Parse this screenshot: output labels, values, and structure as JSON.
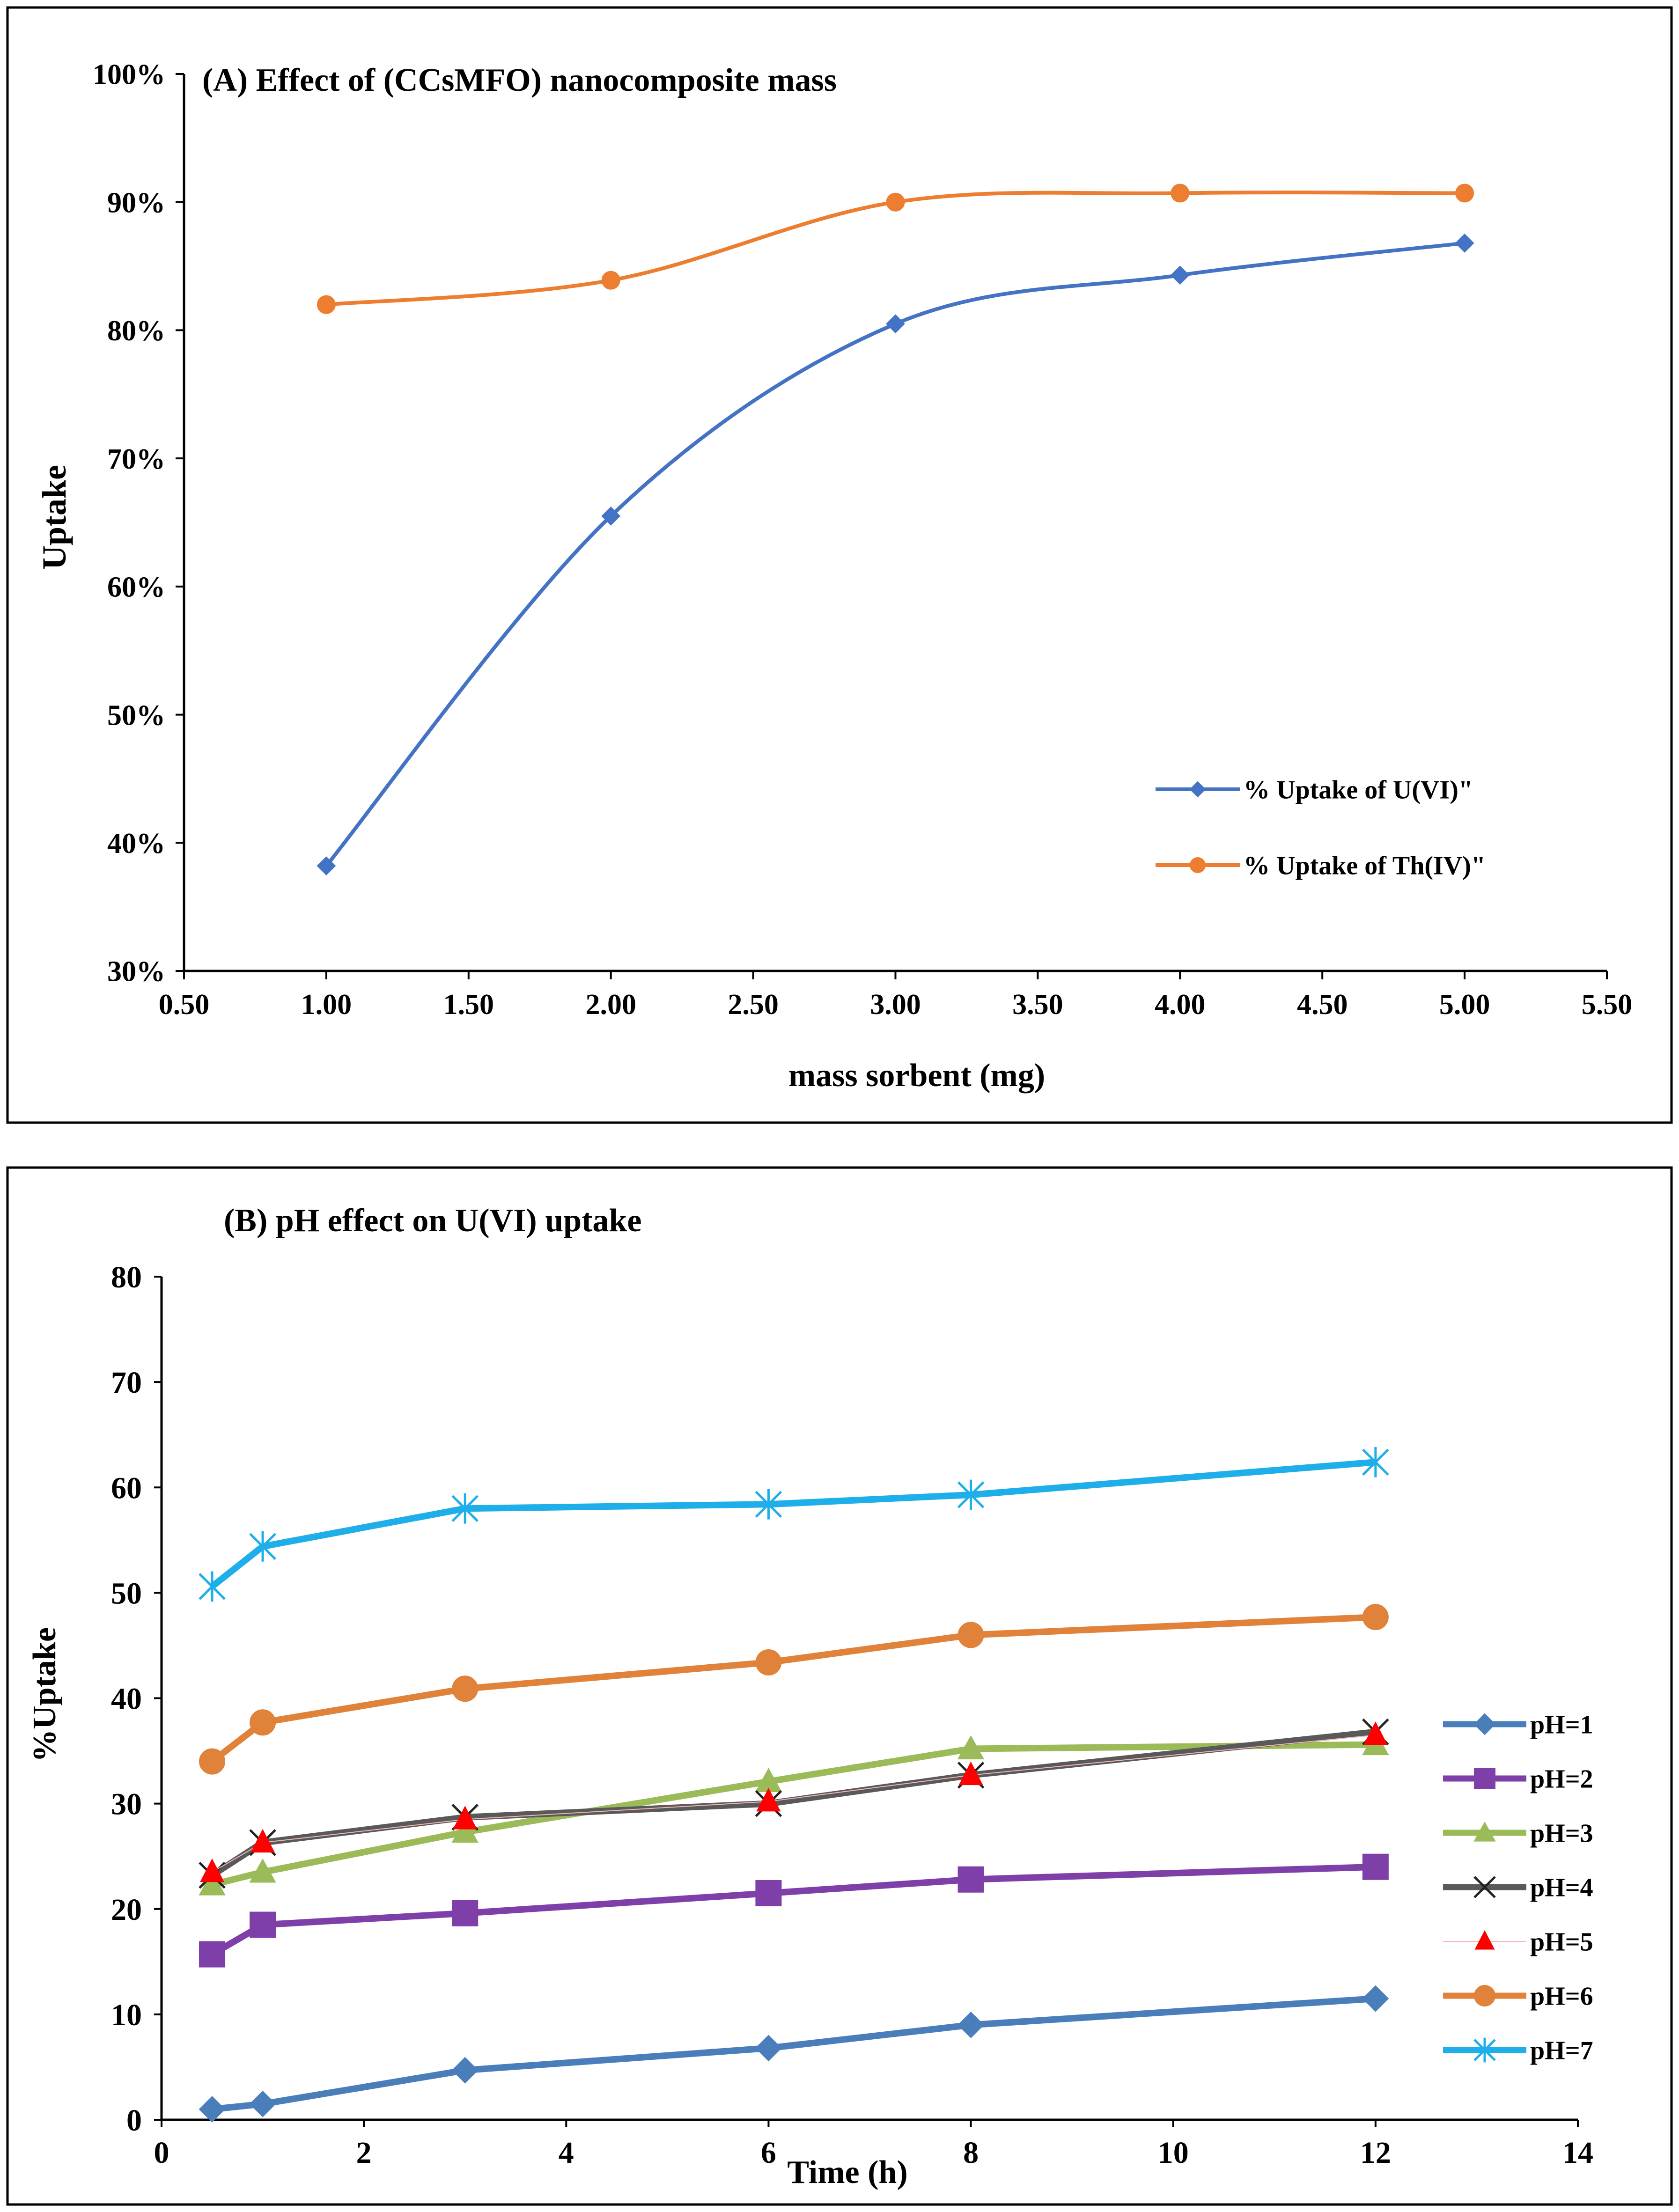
{
  "chart_data": [
    {
      "type": "line",
      "title": "(A) Effect of (CCsMFO) nanocomposite mass",
      "xlabel": "mass sorbent (mg)",
      "ylabel": "Uptake",
      "xlim": [
        0.5,
        5.5
      ],
      "ylim": [
        30,
        100
      ],
      "x_ticks": [
        0.5,
        1.0,
        1.5,
        2.0,
        2.5,
        3.0,
        3.5,
        4.0,
        4.5,
        5.0,
        5.5
      ],
      "x_tick_labels": [
        "0.50",
        "1.00",
        "1.50",
        "2.00",
        "2.50",
        "3.00",
        "3.50",
        "4.00",
        "4.50",
        "5.00",
        "5.50"
      ],
      "y_ticks": [
        30,
        40,
        50,
        60,
        70,
        80,
        90,
        100
      ],
      "y_tick_labels": [
        "30%",
        "40%",
        "50%",
        "60%",
        "70%",
        "80%",
        "90%",
        "100%"
      ],
      "grid": false,
      "legend_position": "bottom-right",
      "smooth": true,
      "series": [
        {
          "name": "% Uptake of U(VI)\"",
          "color": "#4472C4",
          "marker": "diamond",
          "x": [
            1,
            2,
            3,
            4,
            5
          ],
          "values": [
            38.2,
            65.5,
            80.5,
            84.3,
            86.8
          ]
        },
        {
          "name": "% Uptake of Th(IV)\"",
          "color": "#ED7D31",
          "marker": "circle",
          "x": [
            1,
            2,
            3,
            4,
            5
          ],
          "values": [
            82.0,
            83.9,
            90.0,
            90.7,
            90.7
          ]
        }
      ]
    },
    {
      "type": "line",
      "title": "(B) pH effect on U(VI) uptake",
      "xlabel": "Time (h)",
      "ylabel": "%Uptake",
      "xlim": [
        0,
        14
      ],
      "ylim": [
        0,
        80
      ],
      "x_ticks": [
        0,
        2,
        4,
        6,
        8,
        10,
        12,
        14
      ],
      "x_tick_labels": [
        "0",
        "2",
        "4",
        "6",
        "8",
        "10",
        "12",
        "14"
      ],
      "y_ticks": [
        0,
        10,
        20,
        30,
        40,
        50,
        60,
        70,
        80
      ],
      "y_tick_labels": [
        "0",
        "10",
        "20",
        "30",
        "40",
        "50",
        "60",
        "70",
        "80"
      ],
      "grid": false,
      "legend_position": "right",
      "smooth": false,
      "series": [
        {
          "name": "pH=1",
          "color": "#4A7EBB",
          "marker": "diamond",
          "x": [
            0.5,
            1,
            3,
            6,
            8,
            12
          ],
          "values": [
            1.0,
            1.5,
            4.7,
            6.8,
            9.0,
            11.5
          ]
        },
        {
          "name": "pH=2",
          "color": "#7E3FA8",
          "marker": "square",
          "x": [
            0.5,
            1,
            3,
            6,
            8,
            12
          ],
          "values": [
            15.7,
            18.5,
            19.6,
            21.5,
            22.8,
            24.0
          ]
        },
        {
          "name": "pH=3",
          "color": "#9BBB59",
          "marker": "triangle",
          "x": [
            0.5,
            1,
            3,
            6,
            8,
            12
          ],
          "values": [
            22.3,
            23.5,
            27.3,
            32.1,
            35.2,
            35.6
          ]
        },
        {
          "name": "pH=4",
          "color": "#595959",
          "marker": "x",
          "x": [
            0.5,
            1,
            3,
            6,
            8,
            12
          ],
          "values": [
            23.2,
            26.3,
            28.7,
            30.0,
            32.7,
            36.8
          ]
        },
        {
          "name": "pH=5",
          "color": "#FF0000",
          "marker": "red-triangle",
          "x": [
            0.5,
            1,
            3,
            6,
            8,
            12
          ],
          "values": [
            23.5,
            26.3,
            28.5,
            30.2,
            32.7,
            36.5
          ]
        },
        {
          "name": "pH=6",
          "color": "#E0823A",
          "marker": "circle",
          "x": [
            0.5,
            1,
            3,
            6,
            8,
            12
          ],
          "values": [
            34.0,
            37.7,
            40.9,
            43.4,
            46.0,
            47.7
          ]
        },
        {
          "name": "pH=7",
          "color": "#1EAEEA",
          "marker": "star",
          "x": [
            0.5,
            1,
            3,
            6,
            8,
            12
          ],
          "values": [
            50.6,
            54.4,
            58.0,
            58.4,
            59.3,
            62.4
          ]
        }
      ]
    }
  ]
}
